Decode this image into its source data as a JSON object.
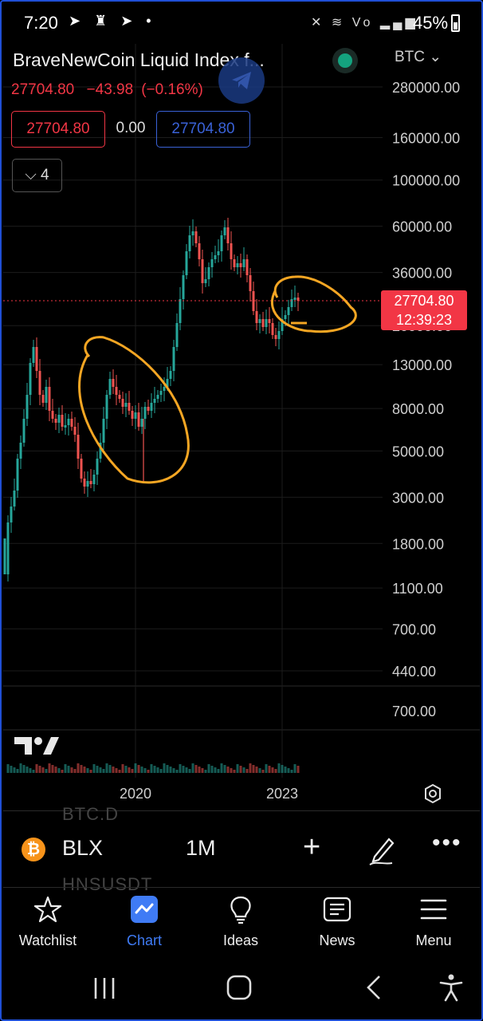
{
  "status_bar": {
    "time": "7:20",
    "left_icons": [
      "telegram-icon",
      "telegram-icon",
      "telegram-icon",
      "dot"
    ],
    "right_icons": "mute-icon wifi-icon volte-icon signal-icon",
    "battery": "45%"
  },
  "header": {
    "title": "BraveNewCoin Liquid Index f...",
    "currency": "BTC",
    "price": "27704.80",
    "change": "−43.98",
    "change_pct": "(−0.16%)",
    "sell_price": "27704.80",
    "spread": "0.00",
    "buy_price": "27704.80",
    "indicators_count": "4"
  },
  "chart_data": {
    "type": "candlestick",
    "scale": "log",
    "interval": "1M",
    "y_ticks": [
      "280000.00",
      "160000.00",
      "100000.00",
      "60000.00",
      "36000.00",
      "20000.00",
      "13000.00",
      "8000.00",
      "5000.00",
      "3000.00",
      "1800.00",
      "1100.00",
      "700.00",
      "440.00"
    ],
    "volume_pane_tick": "700.00",
    "x_ticks": [
      "2020",
      "2023"
    ],
    "last_price": "27704.80",
    "countdown": "12:39:23",
    "annotations": "two orange hand-drawn circles",
    "colors": {
      "up": "#26a69a",
      "down": "#ef5350",
      "annotation": "#f5a623",
      "price_tag": "#f23645"
    }
  },
  "symbol_bar": {
    "symbol": "BLX",
    "interval": "1M",
    "ghost_above": "BTC.D",
    "ghost_below": "HNSUSDT"
  },
  "tabs": [
    {
      "label": "Watchlist"
    },
    {
      "label": "Chart"
    },
    {
      "label": "Ideas"
    },
    {
      "label": "News"
    },
    {
      "label": "Menu"
    }
  ],
  "colors": {
    "accent": "#3f7bf5",
    "bg": "#000000"
  }
}
